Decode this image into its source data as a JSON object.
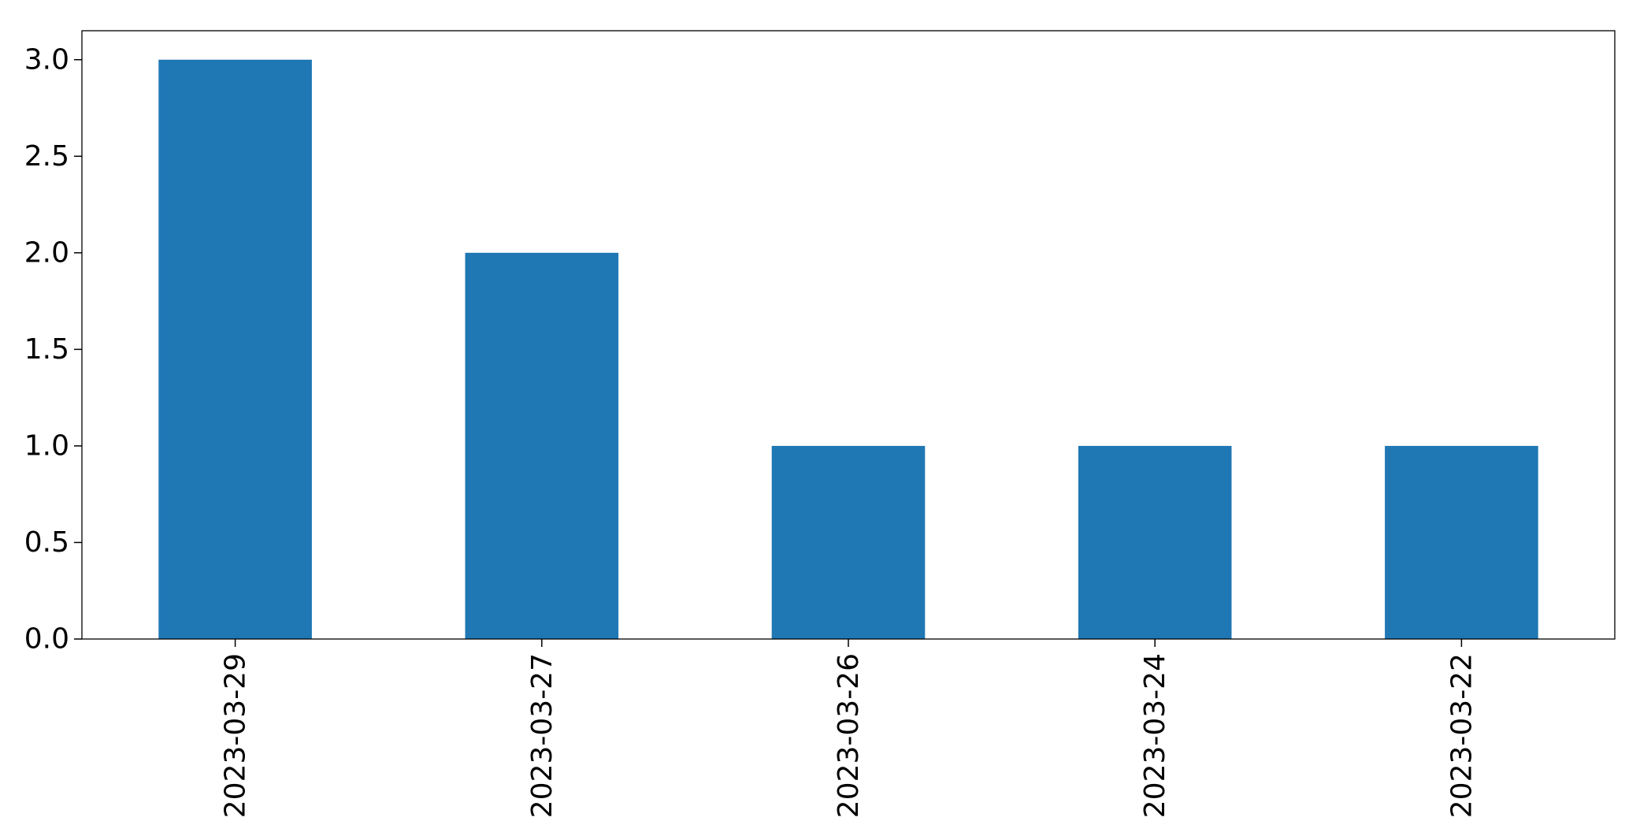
{
  "chart_data": {
    "type": "bar",
    "title": "",
    "xlabel": "",
    "ylabel": "",
    "categories": [
      "2023-03-29",
      "2023-03-27",
      "2023-03-26",
      "2023-03-24",
      "2023-03-22"
    ],
    "values": [
      3,
      2,
      1,
      1,
      1
    ],
    "ylim": [
      0,
      3.15
    ],
    "yticks": [
      0.0,
      0.5,
      1.0,
      1.5,
      2.0,
      2.5,
      3.0
    ],
    "ytick_labels": [
      "0.0",
      "0.5",
      "1.0",
      "1.5",
      "2.0",
      "2.5",
      "3.0"
    ],
    "xtick_rotation": "vertical",
    "grid": false,
    "legend": "none",
    "colors": {
      "bar": "#1f77b4",
      "axes": "#000000",
      "background": "#ffffff"
    }
  }
}
